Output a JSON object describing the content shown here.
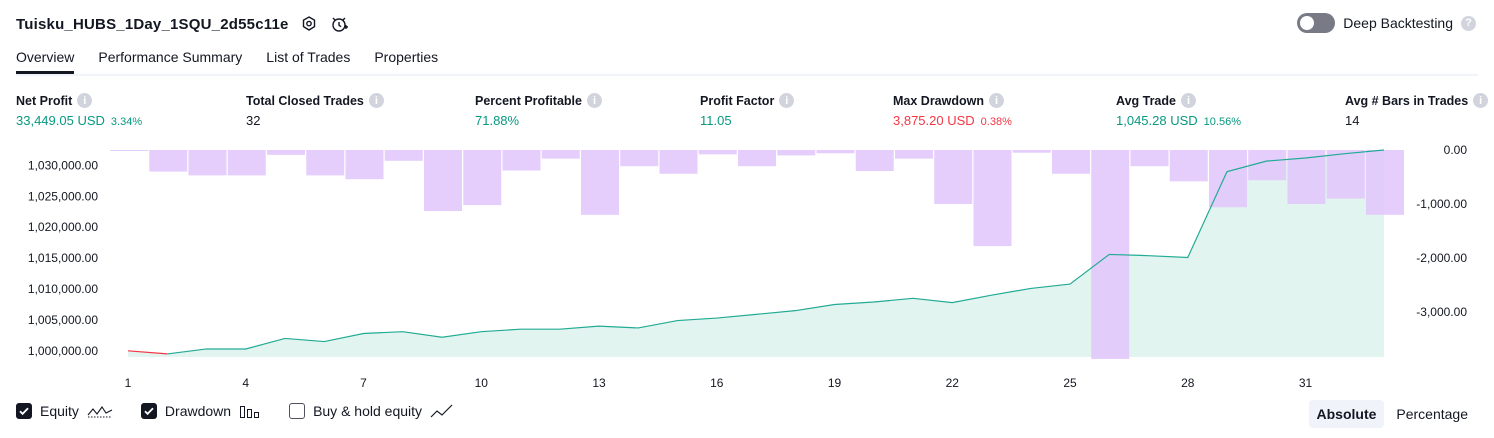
{
  "header": {
    "title": "Tuisku_HUBS_1Day_1SQU_2d55c11e",
    "deep_backtesting_label": "Deep Backtesting",
    "deep_backtesting_enabled": false
  },
  "tabs": [
    {
      "label": "Overview",
      "active": true
    },
    {
      "label": "Performance Summary",
      "active": false
    },
    {
      "label": "List of Trades",
      "active": false
    },
    {
      "label": "Properties",
      "active": false
    }
  ],
  "stats": {
    "net_profit": {
      "label": "Net Profit",
      "value": "33,449.05 USD",
      "pct": "3.34%"
    },
    "total_closed_trades": {
      "label": "Total Closed Trades",
      "value": "32"
    },
    "percent_profitable": {
      "label": "Percent Profitable",
      "value": "71.88%"
    },
    "profit_factor": {
      "label": "Profit Factor",
      "value": "11.05"
    },
    "max_drawdown": {
      "label": "Max Drawdown",
      "value": "3,875.20 USD",
      "pct": "0.38%"
    },
    "avg_trade": {
      "label": "Avg Trade",
      "value": "1,045.28 USD",
      "pct": "10.56%"
    },
    "avg_bars": {
      "label": "Avg # Bars in Trades",
      "value": "14"
    }
  },
  "legend": {
    "equity": {
      "label": "Equity",
      "checked": true
    },
    "drawdown": {
      "label": "Drawdown",
      "checked": true
    },
    "buy_hold": {
      "label": "Buy & hold equity",
      "checked": false
    }
  },
  "modes": {
    "absolute": "Absolute",
    "percentage": "Percentage",
    "selected": "absolute"
  },
  "colors": {
    "equity_line": "#22ab94",
    "equity_fill": "#e2f4ef",
    "drawdown_bar": "#e1c4fb",
    "overlap": "#b2b5e8",
    "first_segment": "#f23645",
    "profit": "#089981",
    "loss": "#f23645"
  },
  "chart_data": {
    "type": "line",
    "x": [
      1,
      2,
      3,
      4,
      5,
      6,
      7,
      8,
      9,
      10,
      11,
      12,
      13,
      14,
      15,
      16,
      17,
      18,
      19,
      20,
      21,
      22,
      23,
      24,
      25,
      26,
      27,
      28,
      29,
      30,
      31,
      32,
      33
    ],
    "x_ticks": [
      "1",
      "4",
      "7",
      "10",
      "13",
      "16",
      "19",
      "22",
      "25",
      "28",
      "31"
    ],
    "x_tick_values": [
      1,
      4,
      7,
      10,
      13,
      16,
      19,
      22,
      25,
      28,
      31
    ],
    "series": [
      {
        "axis": "left",
        "values": [
          1000000,
          999500,
          1000300,
          1000300,
          1002000,
          1001500,
          1002800,
          1003100,
          1002200,
          1003100,
          1003500,
          1003500,
          1004000,
          1003700,
          1004900,
          1005300,
          1005900,
          1006500,
          1007500,
          1007900,
          1008500,
          1007800,
          1009000,
          1010100,
          1010800,
          1015600,
          1015400,
          1015100,
          1029000,
          1030700,
          1031200,
          1031900,
          1032500
        ]
      },
      {
        "axis": "right",
        "values": [
          0,
          -400,
          -470,
          -470,
          -90,
          -470,
          -540,
          -200,
          -1130,
          -1020,
          -380,
          -160,
          -1200,
          -300,
          -440,
          -80,
          -300,
          -100,
          -60,
          -390,
          -160,
          -1000,
          -1780,
          -50,
          -440,
          -3870,
          -300,
          -580,
          -1060,
          -560,
          -1000,
          -900,
          -1200
        ]
      }
    ],
    "y_left_ticks": [
      "1,000,000.00",
      "1,005,000.00",
      "1,010,000.00",
      "1,015,000.00",
      "1,020,000.00",
      "1,025,000.00",
      "1,030,000.00"
    ],
    "y_left_tick_values": [
      1000000,
      1005000,
      1010000,
      1015000,
      1020000,
      1025000,
      1030000
    ],
    "ylim_left": [
      999000,
      1032500
    ],
    "y_right_ticks": [
      "0.00",
      "-1,000.00",
      "-2,000.00",
      "-3,000.00"
    ],
    "y_right_tick_values": [
      0,
      -1000,
      -2000,
      -3000
    ],
    "ylim_right": [
      -3870,
      0
    ],
    "grid": false
  }
}
